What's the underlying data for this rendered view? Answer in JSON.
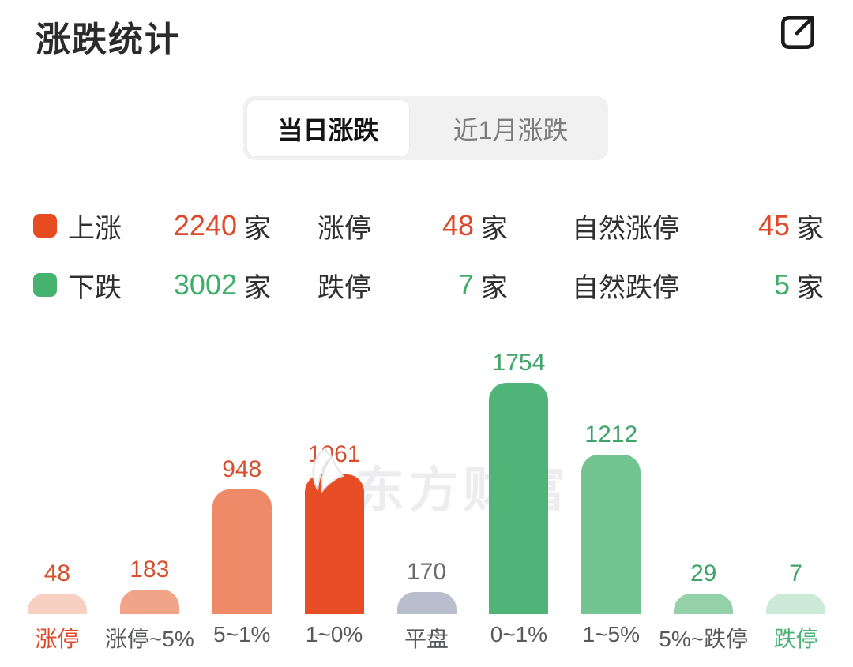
{
  "header": {
    "title": "涨跌统计"
  },
  "tabs": {
    "items": [
      {
        "label": "当日涨跌",
        "active": true
      },
      {
        "label": "近1月涨跌",
        "active": false
      }
    ]
  },
  "summary": {
    "up": {
      "label": "上涨",
      "count": "2240",
      "unit": "家",
      "limit_label": "涨停",
      "limit_count": "48",
      "limit_unit": "家",
      "natural_label": "自然涨停",
      "natural_count": "45",
      "natural_unit": "家",
      "color": "#e64b21",
      "number_color": "#e0482a"
    },
    "down": {
      "label": "下跌",
      "count": "3002",
      "unit": "家",
      "limit_label": "跌停",
      "limit_count": "7",
      "limit_unit": "家",
      "natural_label": "自然跌停",
      "natural_count": "5",
      "natural_unit": "家",
      "color": "#45b26e",
      "number_color": "#3fae69"
    }
  },
  "chart_data": {
    "type": "bar",
    "title": "涨跌统计",
    "categories": [
      "涨停",
      "涨停~5%",
      "5~1%",
      "1~0%",
      "平盘",
      "0~1%",
      "1~5%",
      "5%~跌停",
      "跌停"
    ],
    "values": [
      48,
      183,
      948,
      1061,
      170,
      1754,
      1212,
      29,
      7
    ],
    "bar_colors": [
      "#f8d0c1",
      "#f2a488",
      "#ef8a68",
      "#e84e25",
      "#b9bdcc",
      "#50b478",
      "#74c492",
      "#95d1a8",
      "#cdead9"
    ],
    "value_label_colors": [
      "#d5502e",
      "#d5502e",
      "#d5502e",
      "#d5502e",
      "#6b6b6b",
      "#3fa469",
      "#3fa469",
      "#3fa469",
      "#3fa469"
    ],
    "category_label_colors": [
      "#df4a2b",
      "#58595b",
      "#58595b",
      "#58595b",
      "#58595b",
      "#58595b",
      "#58595b",
      "#58595b",
      "#4ab277"
    ],
    "ylim": [
      0,
      1754
    ],
    "grid": false,
    "legend_position": "none",
    "value_labels_shown": true
  },
  "watermark": {
    "text": "东方财富",
    "logo": "eastmoney-flame-icon"
  }
}
